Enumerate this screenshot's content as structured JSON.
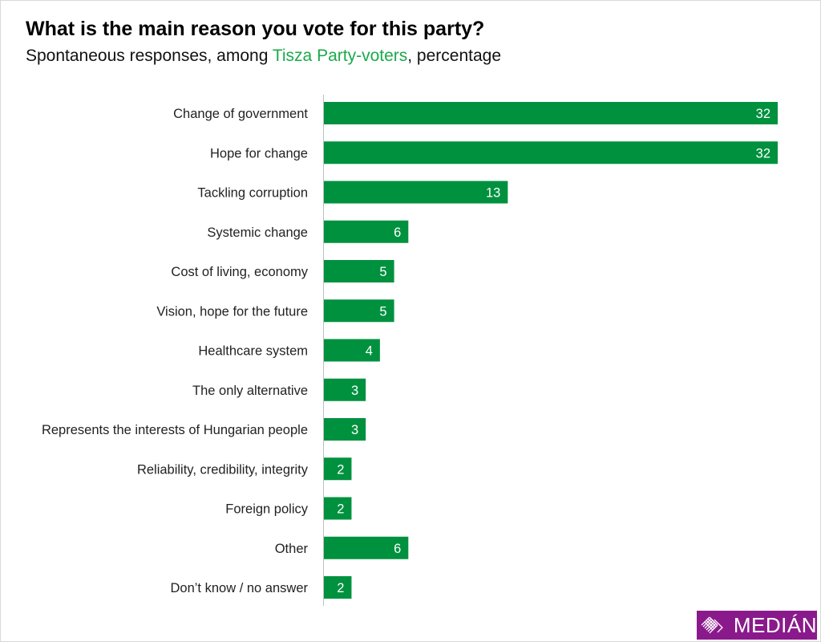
{
  "chart_data": {
    "type": "bar",
    "orientation": "horizontal",
    "title": "What is the main reason you vote for this party?",
    "subtitle_parts": [
      "Spontaneous responses, among ",
      "Tisza Party-voters",
      ", percentage"
    ],
    "categories": [
      "Change of government",
      "Hope for change",
      "Tackling corruption",
      "Systemic change",
      "Cost of living, economy",
      "Vision, hope for the future",
      "Healthcare system",
      "The only alternative",
      "Represents the interests of Hungarian people",
      "Reliability, credibility, integrity",
      "Foreign policy",
      "Other",
      "Don’t know / no answer"
    ],
    "values": [
      32,
      32,
      13,
      6,
      5,
      5,
      4,
      3,
      3,
      2,
      2,
      6,
      2
    ],
    "xlim": [
      0,
      32
    ],
    "grid": false,
    "bar_color": "#00913f",
    "highlight_color": "#1aaa4a"
  },
  "logo": {
    "text": "MEDIÁN",
    "color": "#8a1a8c"
  }
}
